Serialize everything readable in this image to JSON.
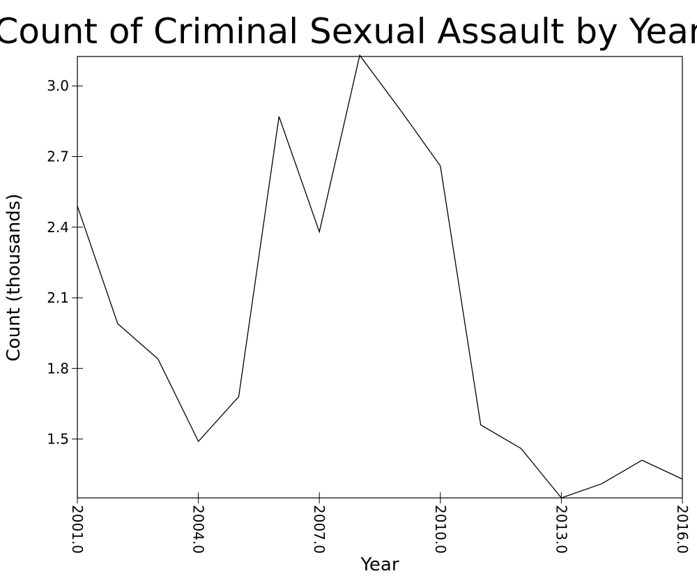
{
  "chart_data": {
    "type": "line",
    "title": "Count of Criminal Sexual Assault by Year",
    "xlabel": "Year",
    "ylabel": "Count (thousands)",
    "x": [
      2001,
      2002,
      2003,
      2004,
      2005,
      2006,
      2007,
      2008,
      2009,
      2010,
      2011,
      2012,
      2013,
      2014,
      2015,
      2016
    ],
    "series": [
      {
        "values": [
          2.49,
          1.99,
          1.84,
          1.49,
          1.68,
          2.87,
          2.38,
          3.13,
          2.9,
          2.66,
          1.56,
          1.46,
          1.25,
          1.31,
          1.41,
          1.33
        ]
      }
    ],
    "xlim": [
      2001,
      2016
    ],
    "ylim": [
      1.25,
      3.125
    ],
    "xticks": [
      2001,
      2004,
      2007,
      2010,
      2013,
      2016
    ],
    "xtick_labels": [
      "2001.0",
      "2004.0",
      "2007.0",
      "2010.0",
      "2013.0",
      "2016.0"
    ],
    "yticks": [
      1.5,
      1.8,
      2.1,
      2.4,
      2.7,
      3.0
    ],
    "ytick_labels": [
      "1.5",
      "1.8",
      "2.1",
      "2.4",
      "2.7",
      "3.0"
    ],
    "grid": false,
    "line_color": "#000000"
  }
}
